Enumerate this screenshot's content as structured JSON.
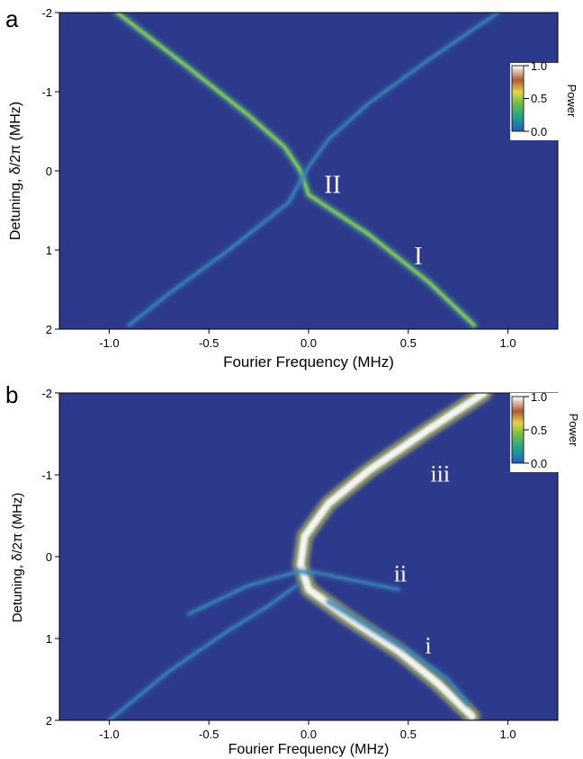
{
  "chart_data": [
    {
      "panel": "a",
      "type": "heatmap",
      "title": "",
      "xlabel": "Fourier Frequency (MHz)",
      "ylabel": "Detuning, δ/2π (MHz)",
      "xlim": [
        -1.25,
        1.25
      ],
      "ylim": [
        -2,
        2
      ],
      "y_inverted": true,
      "xticks": [
        -1.0,
        -0.5,
        0.0,
        0.5,
        1.0
      ],
      "xtick_labels": [
        "-1.0",
        "-0.5",
        "0.0",
        "0.5",
        "1.0"
      ],
      "yticks": [
        -2,
        -1,
        0,
        1,
        2
      ],
      "ytick_labels": [
        "-2",
        "-1",
        "0",
        "1",
        "2"
      ],
      "colorbar": {
        "label": "Power",
        "ticks": [
          0.0,
          0.5,
          1.0
        ],
        "tick_labels": [
          "0.0",
          "0.5",
          "1.0"
        ],
        "range": [
          0,
          1
        ]
      },
      "background_color": "#2d3a8c",
      "branch_labels": [
        {
          "text": "II",
          "x": 0.12,
          "y": 0.28
        },
        {
          "text": "I",
          "x": 0.55,
          "y": 1.18
        }
      ],
      "traces": [
        {
          "name": "",
          "points": [
            [
              -0.96,
              -2.0
            ],
            [
              -0.6,
              -1.3
            ],
            [
              -0.3,
              -0.7
            ],
            [
              -0.12,
              -0.3
            ],
            [
              -0.04,
              0.0
            ],
            [
              0.0,
              0.3
            ],
            [
              0.3,
              0.8
            ],
            [
              0.6,
              1.4
            ],
            [
              0.83,
              1.95
            ]
          ],
          "intensity": 0.75
        },
        {
          "name": "",
          "points": [
            [
              0.95,
              -2.0
            ],
            [
              0.6,
              -1.4
            ],
            [
              0.3,
              -0.85
            ],
            [
              0.1,
              -0.4
            ],
            [
              0.0,
              -0.05
            ],
            [
              -0.1,
              0.4
            ],
            [
              -0.4,
              1.0
            ],
            [
              -0.7,
              1.55
            ],
            [
              -0.9,
              1.95
            ]
          ],
          "intensity": 0.35
        }
      ]
    },
    {
      "panel": "b",
      "type": "heatmap",
      "title": "",
      "xlabel": "Fourier Frequency (MHz)",
      "ylabel": "Detuning, δ/2π (MHz)",
      "xlim": [
        -1.25,
        1.25
      ],
      "ylim": [
        -2,
        2
      ],
      "y_inverted": true,
      "xticks": [
        -1.0,
        -0.5,
        0.0,
        0.5,
        1.0
      ],
      "xtick_labels": [
        "-1.0",
        "-0.5",
        "0.0",
        "0.5",
        "1.0"
      ],
      "yticks": [
        -2,
        -1,
        0,
        1,
        2
      ],
      "ytick_labels": [
        "-2",
        "-1",
        "0",
        "1",
        "2"
      ],
      "colorbar": {
        "label": "Power",
        "ticks": [
          0.0,
          0.5,
          1.0
        ],
        "tick_labels": [
          "0.0",
          "0.5",
          "1.0"
        ],
        "range": [
          0,
          1
        ]
      },
      "background_color": "#2d3a8c",
      "branch_labels": [
        {
          "text": "iii",
          "x": 0.66,
          "y": -0.92
        },
        {
          "text": "ii",
          "x": 0.46,
          "y": 0.3
        },
        {
          "text": "i",
          "x": 0.6,
          "y": 1.18
        }
      ],
      "traces": [
        {
          "name": "",
          "points": [
            [
              0.88,
              -2.0
            ],
            [
              0.6,
              -1.55
            ],
            [
              0.3,
              -1.05
            ],
            [
              0.1,
              -0.65
            ],
            [
              -0.02,
              -0.25
            ],
            [
              -0.04,
              0.1
            ],
            [
              0.0,
              0.4
            ],
            [
              0.2,
              0.75
            ],
            [
              0.45,
              1.15
            ],
            [
              0.65,
              1.55
            ],
            [
              0.82,
              1.95
            ]
          ],
          "intensity": 1.0
        },
        {
          "name": "",
          "points": [
            [
              -1.0,
              2.0
            ],
            [
              -0.7,
              1.4
            ],
            [
              -0.4,
              0.9
            ],
            [
              -0.2,
              0.6
            ],
            [
              -0.06,
              0.35
            ]
          ],
          "intensity": 0.55
        },
        {
          "name": "",
          "points": [
            [
              -0.6,
              0.7
            ],
            [
              -0.3,
              0.35
            ],
            [
              -0.05,
              0.18
            ],
            [
              0.05,
              0.2
            ],
            [
              0.25,
              0.3
            ],
            [
              0.45,
              0.4
            ]
          ],
          "intensity": 0.3
        },
        {
          "name": "",
          "points": [
            [
              0.1,
              0.55
            ],
            [
              0.3,
              0.85
            ],
            [
              0.5,
              1.15
            ],
            [
              0.7,
              1.5
            ],
            [
              0.8,
              1.8
            ]
          ],
          "intensity": 0.25
        }
      ]
    }
  ]
}
